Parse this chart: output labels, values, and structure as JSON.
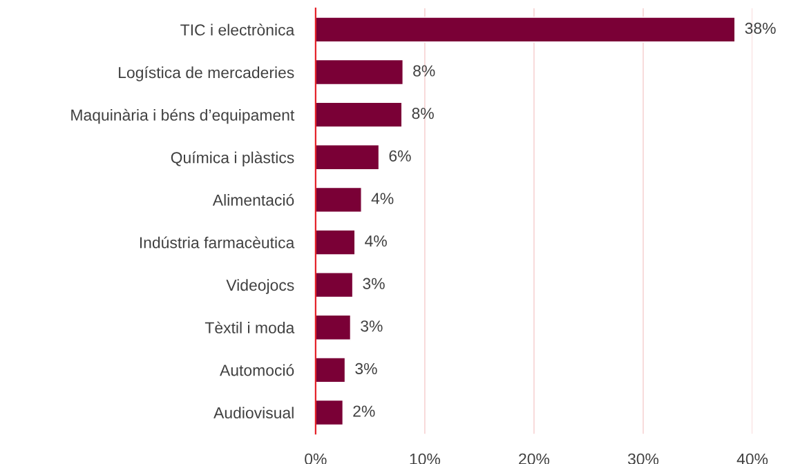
{
  "chart_data": {
    "type": "bar",
    "orientation": "horizontal",
    "categories": [
      "TIC i electrònica",
      "Logística de mercaderies",
      "Maquinària i béns d’equipament",
      "Química i plàstics",
      "Alimentació",
      "Indústria farmacèutica",
      "Videojocs",
      "Tèxtil i moda",
      "Automoció",
      "Audiovisual"
    ],
    "values": [
      38.4,
      8.0,
      7.9,
      5.8,
      4.2,
      3.6,
      3.4,
      3.2,
      2.7,
      2.5
    ],
    "value_labels": [
      "38%",
      "8%",
      "8%",
      "6%",
      "4%",
      "4%",
      "3%",
      "3%",
      "3%",
      "2%"
    ],
    "color": "#7a0036",
    "xlim": [
      0,
      40
    ],
    "xticks": [
      {
        "value": 0,
        "label": "0%"
      },
      {
        "value": 10,
        "label": "10%"
      },
      {
        "value": 20,
        "label": "20%"
      },
      {
        "value": 30,
        "label": "30%"
      },
      {
        "value": 40,
        "label": "40%"
      }
    ],
    "grid": "x"
  }
}
